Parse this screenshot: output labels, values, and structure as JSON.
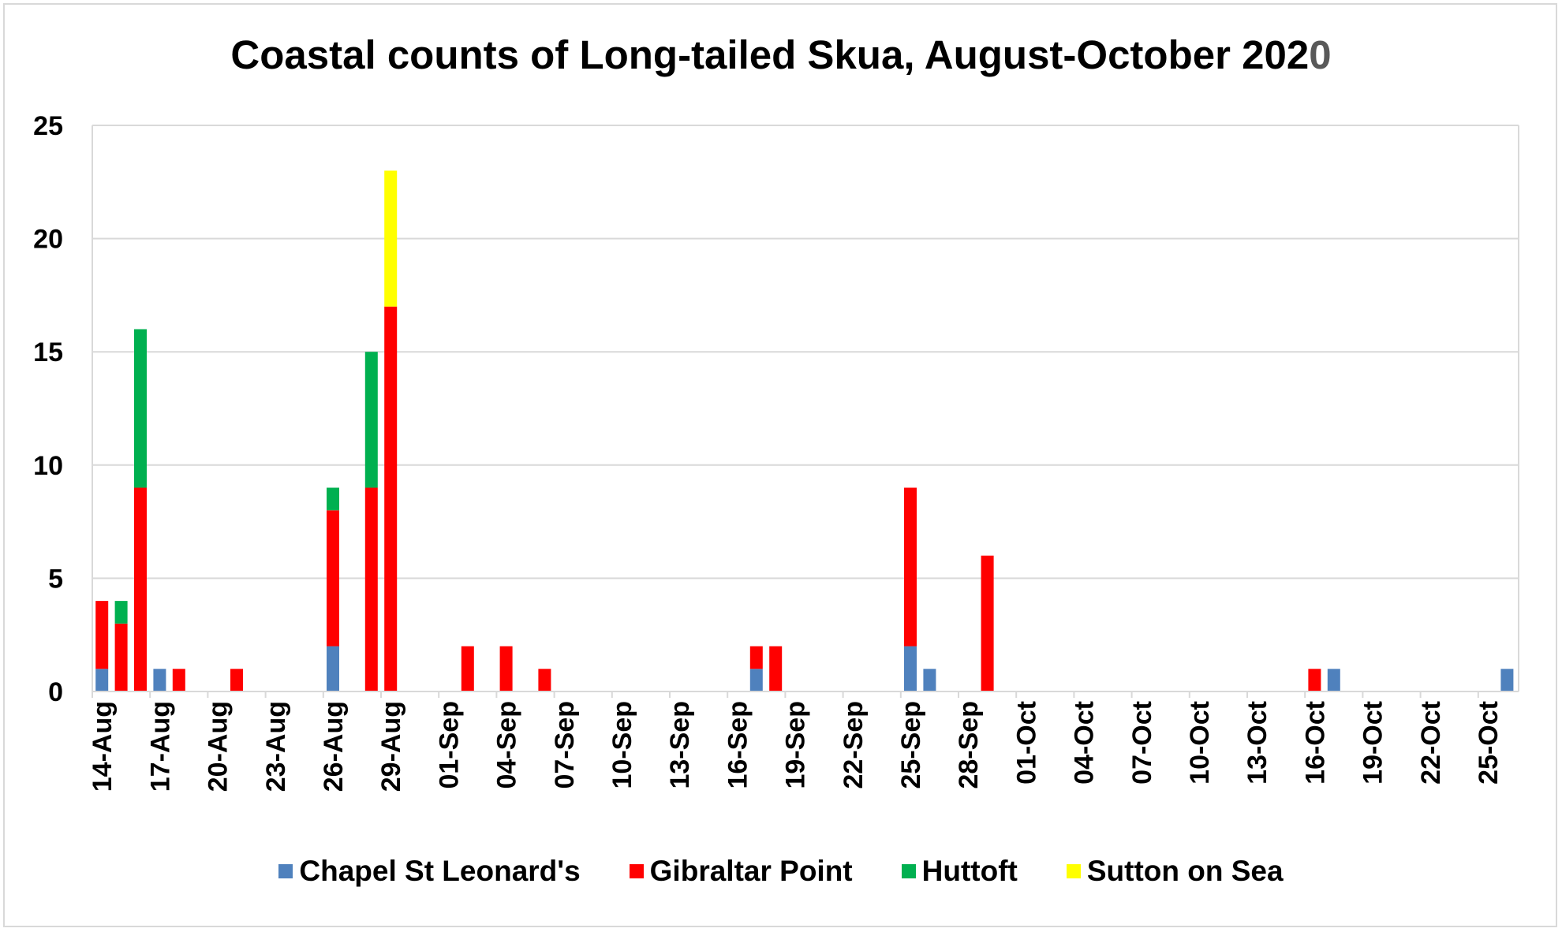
{
  "chart_data": {
    "type": "bar",
    "stacked": true,
    "title": "Coastal counts of Long-tailed Skua, August-October 2020",
    "xlabel": "",
    "ylabel": "",
    "ylim": [
      0,
      25
    ],
    "yticks": [
      0,
      5,
      10,
      15,
      20,
      25
    ],
    "grid": true,
    "legend_position": "bottom",
    "x_start": "14-Aug",
    "x_tick_labels": [
      "14-Aug",
      "17-Aug",
      "20-Aug",
      "23-Aug",
      "26-Aug",
      "29-Aug",
      "01-Sep",
      "04-Sep",
      "07-Sep",
      "10-Sep",
      "13-Sep",
      "16-Sep",
      "19-Sep",
      "22-Sep",
      "25-Sep",
      "28-Sep",
      "01-Oct",
      "04-Oct",
      "07-Oct",
      "10-Oct",
      "13-Oct",
      "16-Oct",
      "19-Oct",
      "22-Oct",
      "25-Oct"
    ],
    "series": [
      {
        "name": "Chapel St Leonard's",
        "color": "#4f81bd",
        "points": [
          [
            "14-Aug",
            1
          ],
          [
            "17-Aug",
            1
          ],
          [
            "26-Aug",
            2
          ],
          [
            "17-Sep",
            1
          ],
          [
            "25-Sep",
            2
          ],
          [
            "26-Sep",
            1
          ],
          [
            "17-Oct",
            1
          ],
          [
            "26-Oct",
            1
          ]
        ]
      },
      {
        "name": "Gibraltar Point",
        "color": "#ff0000",
        "points": [
          [
            "14-Aug",
            3
          ],
          [
            "15-Aug",
            3
          ],
          [
            "16-Aug",
            9
          ],
          [
            "18-Aug",
            1
          ],
          [
            "21-Aug",
            1
          ],
          [
            "26-Aug",
            6
          ],
          [
            "28-Aug",
            9
          ],
          [
            "29-Aug",
            17
          ],
          [
            "02-Sep",
            2
          ],
          [
            "04-Sep",
            2
          ],
          [
            "06-Sep",
            1
          ],
          [
            "17-Sep",
            1
          ],
          [
            "18-Sep",
            2
          ],
          [
            "25-Sep",
            7
          ],
          [
            "29-Sep",
            6
          ],
          [
            "16-Oct",
            1
          ]
        ]
      },
      {
        "name": "Huttoft",
        "color": "#00b050",
        "points": [
          [
            "15-Aug",
            1
          ],
          [
            "16-Aug",
            7
          ],
          [
            "26-Aug",
            1
          ],
          [
            "28-Aug",
            6
          ]
        ]
      },
      {
        "name": "Sutton on Sea",
        "color": "#ffff00",
        "points": [
          [
            "29-Aug",
            6
          ]
        ]
      }
    ]
  }
}
